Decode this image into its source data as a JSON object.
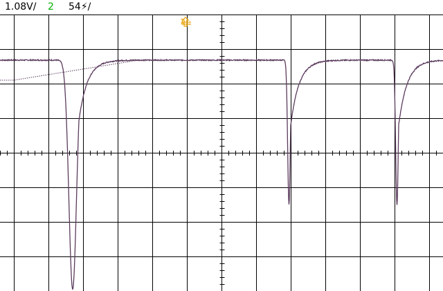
{
  "header": {
    "ch1_scale": "1.08V/",
    "channel": "2",
    "ch2_scale": "54⚡/"
  },
  "trigger": {
    "marker_label": "1"
  },
  "colors": {
    "background": "#ffffff",
    "grid": "#000000",
    "trace": "#5a3a5c",
    "header_text": "#000000",
    "channel_text": "#00b000",
    "trigger_marker": "#e8a000"
  },
  "chart_data": {
    "type": "line",
    "title": "",
    "xlabel": "",
    "ylabel": "",
    "grid": true,
    "x_divisions": 13,
    "y_divisions": 8,
    "xlim": [
      0,
      12.8
    ],
    "ylim": [
      -4.2,
      4.2
    ],
    "trigger_x_div": 5,
    "series": [
      {
        "baseline": 2.68,
        "pulses": [
          {
            "x_div": 1.7,
            "min_div": -3.95,
            "width_div": 0.2,
            "recovery_div": 0.7
          },
          {
            "x_div": 7.95,
            "min_div": -1.5,
            "width_div": 0.07,
            "recovery_div": 0.7
          },
          {
            "x_div": 11.07,
            "min_div": -1.5,
            "width_div": 0.07,
            "recovery_div": 0.7
          }
        ],
        "offset_ramp": {
          "start_div": 0,
          "start_level": 2.1,
          "end_div": 3.6
        }
      }
    ]
  }
}
